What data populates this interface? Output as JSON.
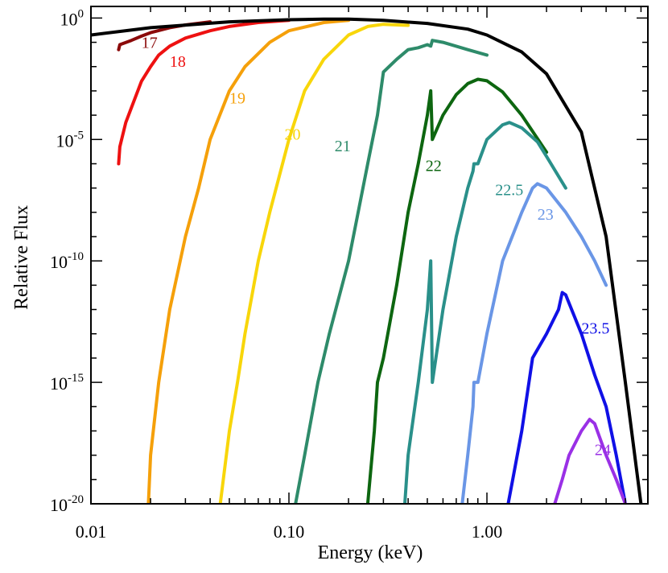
{
  "chart_data": {
    "type": "line",
    "title": "",
    "xlabel": "Energy (keV)",
    "ylabel": "Relative Flux",
    "x_scale": "log",
    "y_scale": "log",
    "xlim": [
      0.01,
      6.5
    ],
    "ylim": [
      1e-20,
      3
    ],
    "grid": false,
    "legend": "none",
    "x_ticks": [
      {
        "value": 0.01,
        "label": "0.01"
      },
      {
        "value": 0.1,
        "label": "0.10"
      },
      {
        "value": 1,
        "label": "1.00"
      }
    ],
    "y_ticks": [
      {
        "value": 1,
        "base": "10",
        "exp": "0"
      },
      {
        "value": 1e-05,
        "base": "10",
        "exp": "-5"
      },
      {
        "value": 1e-10,
        "base": "10",
        "exp": "-10"
      },
      {
        "value": 1e-15,
        "base": "10",
        "exp": "-15"
      },
      {
        "value": 1e-20,
        "base": "10",
        "exp": "-20"
      }
    ],
    "series": [
      {
        "name": "17",
        "color": "#8b0a0a",
        "label_at": [
          0.018,
          0.06
        ],
        "x": [
          0.0138,
          0.014,
          0.016,
          0.018,
          0.02,
          0.025,
          0.03,
          0.04
        ],
        "y": [
          0.05,
          0.08,
          0.12,
          0.18,
          0.25,
          0.4,
          0.52,
          0.7
        ]
      },
      {
        "name": "18",
        "color": "#ee1111",
        "label_at": [
          0.025,
          0.01
        ],
        "x": [
          0.0138,
          0.014,
          0.015,
          0.016,
          0.018,
          0.02,
          0.022,
          0.025,
          0.03,
          0.04,
          0.05,
          0.07,
          0.1
        ],
        "y": [
          1e-06,
          5e-06,
          5e-05,
          0.0002,
          0.0025,
          0.01,
          0.03,
          0.07,
          0.15,
          0.3,
          0.45,
          0.65,
          0.8
        ]
      },
      {
        "name": "19",
        "color": "#f5a00a",
        "label_at": [
          0.05,
          0.0003
        ],
        "x": [
          0.0195,
          0.02,
          0.022,
          0.025,
          0.03,
          0.035,
          0.04,
          0.05,
          0.06,
          0.08,
          0.1,
          0.15,
          0.2
        ],
        "y": [
          1e-20,
          1e-18,
          1e-15,
          1e-12,
          1e-09,
          1e-07,
          1e-05,
          0.001,
          0.01,
          0.1,
          0.3,
          0.65,
          0.8
        ]
      },
      {
        "name": "20",
        "color": "#f8d60a",
        "label_at": [
          0.095,
          1e-05
        ],
        "x": [
          0.045,
          0.05,
          0.055,
          0.06,
          0.07,
          0.08,
          0.1,
          0.12,
          0.15,
          0.2,
          0.25,
          0.3,
          0.4
        ],
        "y": [
          1e-20,
          1e-17,
          1e-15,
          1e-13,
          1e-10,
          1e-08,
          1e-05,
          0.001,
          0.02,
          0.2,
          0.45,
          0.55,
          0.5
        ]
      },
      {
        "name": "21",
        "color": "#2e8b6a",
        "label_at": [
          0.17,
          3.2e-06
        ],
        "x": [
          0.108,
          0.12,
          0.14,
          0.16,
          0.2,
          0.25,
          0.28,
          0.3,
          0.35,
          0.4,
          0.45,
          0.5,
          0.52,
          0.53,
          0.6,
          0.8,
          1.0
        ],
        "y": [
          1e-20,
          1e-18,
          1e-15,
          1e-13,
          1e-10,
          1e-06,
          0.0001,
          0.006,
          0.02,
          0.05,
          0.06,
          0.08,
          0.07,
          0.12,
          0.1,
          0.05,
          0.03
        ]
      },
      {
        "name": "22",
        "color": "#0d6610",
        "label_at": [
          0.49,
          5e-07
        ],
        "x": [
          0.25,
          0.27,
          0.28,
          0.3,
          0.35,
          0.4,
          0.45,
          0.5,
          0.52,
          0.53,
          0.6,
          0.7,
          0.8,
          0.9,
          1.0,
          1.2,
          1.5,
          2.0
        ],
        "y": [
          1e-20,
          1e-17,
          1e-15,
          1e-14,
          1e-11,
          1e-08,
          1e-06,
          0.0001,
          0.001,
          1e-05,
          0.0001,
          0.0007,
          0.002,
          0.003,
          0.0026,
          0.0009,
          0.0001,
          3e-06
        ]
      },
      {
        "name": "22.5",
        "color": "#2a908a",
        "label_at": [
          1.1,
          5e-08
        ],
        "x": [
          0.385,
          0.4,
          0.45,
          0.5,
          0.52,
          0.53,
          0.6,
          0.7,
          0.8,
          0.85,
          0.86,
          0.9,
          1.0,
          1.2,
          1.3,
          1.5,
          1.8,
          2.0,
          2.5
        ],
        "y": [
          1e-20,
          1e-18,
          1e-15,
          1e-12,
          1e-10,
          1e-15,
          1e-12,
          1e-09,
          1e-07,
          5e-07,
          1e-06,
          1e-06,
          1e-05,
          4e-05,
          5e-05,
          3e-05,
          8e-06,
          2e-06,
          1e-07
        ]
      },
      {
        "name": "23",
        "color": "#6a96e6",
        "label_at": [
          1.8,
          5e-09
        ],
        "x": [
          0.75,
          0.8,
          0.85,
          0.86,
          0.9,
          1.0,
          1.2,
          1.5,
          1.7,
          1.8,
          2.0,
          2.5,
          3.0,
          3.5,
          4.0
        ],
        "y": [
          1e-20,
          1e-18,
          1e-16,
          1e-15,
          1e-15,
          1e-13,
          1e-10,
          1e-08,
          1e-07,
          1.5e-07,
          1e-07,
          1e-08,
          1e-09,
          1e-10,
          1e-11
        ]
      },
      {
        "name": "23.5",
        "color": "#1010e6",
        "label_at": [
          3.0,
          1e-13
        ],
        "x": [
          1.28,
          1.35,
          1.5,
          1.7,
          2.0,
          2.3,
          2.4,
          2.5,
          3.0,
          3.5,
          4.0,
          4.5,
          5.0
        ],
        "y": [
          1e-20,
          1e-19,
          1e-17,
          1e-14,
          1e-13,
          1e-12,
          5e-12,
          4e-12,
          1e-13,
          2e-15,
          1e-16,
          1e-18,
          1e-20
        ]
      },
      {
        "name": "24",
        "color": "#9a30e6",
        "label_at": [
          3.5,
          1e-18
        ],
        "x": [
          2.2,
          2.4,
          2.6,
          3.0,
          3.3,
          3.5,
          4.0,
          4.5,
          5.0
        ],
        "y": [
          1e-20,
          1e-19,
          1e-18,
          1e-17,
          3e-17,
          2e-17,
          1e-18,
          1e-19,
          1e-20
        ]
      },
      {
        "name": "",
        "color": "#000000",
        "label_at": null,
        "x": [
          0.01,
          0.02,
          0.05,
          0.1,
          0.15,
          0.2,
          0.3,
          0.5,
          0.8,
          1.0,
          1.5,
          2.0,
          3.0,
          4.0,
          5.0,
          6.0
        ],
        "y": [
          0.2,
          0.4,
          0.7,
          0.85,
          0.9,
          0.9,
          0.8,
          0.6,
          0.35,
          0.2,
          0.04,
          0.005,
          2e-05,
          1e-09,
          1e-15,
          1e-20
        ]
      }
    ]
  }
}
